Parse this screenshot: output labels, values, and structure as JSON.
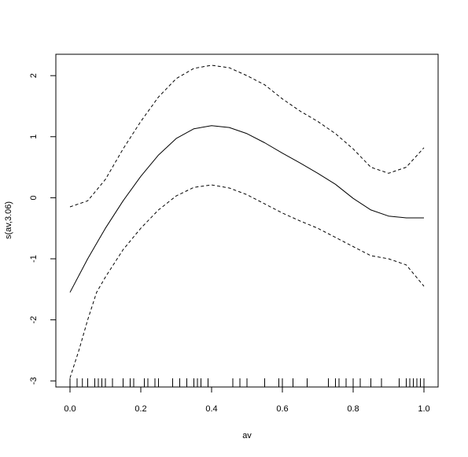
{
  "chart_data": {
    "type": "line",
    "title": "",
    "xlabel": "av",
    "ylabel": "s(av,3.06)",
    "xlim": [
      -0.04,
      1.04
    ],
    "ylim": [
      -3.1,
      2.35
    ],
    "x_ticks": [
      0.0,
      0.2,
      0.4,
      0.6,
      0.8,
      1.0
    ],
    "x_tick_labels": [
      "0.0",
      "0.2",
      "0.4",
      "0.6",
      "0.8",
      "1.0"
    ],
    "y_ticks": [
      -3,
      -2,
      -1,
      0,
      1,
      2
    ],
    "y_tick_labels": [
      "-3",
      "-2",
      "-1",
      "0",
      "1",
      "2"
    ],
    "grid": false,
    "series": [
      {
        "style": "solid",
        "x": [
          0.0,
          0.05,
          0.1,
          0.15,
          0.2,
          0.25,
          0.3,
          0.35,
          0.4,
          0.45,
          0.5,
          0.55,
          0.6,
          0.65,
          0.7,
          0.75,
          0.8,
          0.85,
          0.9,
          0.95,
          1.0
        ],
        "y": [
          -1.55,
          -1.0,
          -0.5,
          -0.05,
          0.35,
          0.7,
          0.97,
          1.13,
          1.18,
          1.15,
          1.05,
          0.9,
          0.73,
          0.57,
          0.4,
          0.22,
          -0.01,
          -0.2,
          -0.3,
          -0.33,
          -0.33
        ]
      },
      {
        "style": "dashed",
        "x": [
          0.0,
          0.05,
          0.1,
          0.15,
          0.2,
          0.25,
          0.3,
          0.35,
          0.4,
          0.45,
          0.5,
          0.55,
          0.6,
          0.65,
          0.7,
          0.75,
          0.8,
          0.85,
          0.9,
          0.95,
          1.0
        ],
        "y": [
          -0.15,
          -0.05,
          0.3,
          0.8,
          1.25,
          1.65,
          1.95,
          2.12,
          2.17,
          2.13,
          2.0,
          1.85,
          1.62,
          1.42,
          1.25,
          1.05,
          0.8,
          0.5,
          0.4,
          0.5,
          0.82
        ]
      },
      {
        "style": "dashed",
        "x": [
          0.0,
          0.025,
          0.05,
          0.075,
          0.1,
          0.15,
          0.2,
          0.25,
          0.3,
          0.35,
          0.4,
          0.45,
          0.5,
          0.55,
          0.6,
          0.65,
          0.7,
          0.75,
          0.8,
          0.85,
          0.9,
          0.95,
          1.0
        ],
        "y": [
          -2.95,
          -2.5,
          -2.0,
          -1.55,
          -1.3,
          -0.85,
          -0.5,
          -0.2,
          0.03,
          0.17,
          0.21,
          0.16,
          0.05,
          -0.1,
          -0.25,
          -0.38,
          -0.5,
          -0.65,
          -0.8,
          -0.95,
          -1.0,
          -1.1,
          -1.45
        ]
      }
    ],
    "rug": [
      0.0,
      0.02,
      0.035,
      0.05,
      0.07,
      0.08,
      0.09,
      0.1,
      0.12,
      0.15,
      0.17,
      0.18,
      0.21,
      0.22,
      0.24,
      0.25,
      0.29,
      0.31,
      0.33,
      0.35,
      0.36,
      0.37,
      0.39,
      0.46,
      0.48,
      0.5,
      0.55,
      0.59,
      0.6,
      0.63,
      0.67,
      0.73,
      0.75,
      0.76,
      0.78,
      0.8,
      0.82,
      0.85,
      0.88,
      0.93,
      0.95,
      0.96,
      0.97,
      0.98,
      0.99,
      1.0
    ]
  }
}
